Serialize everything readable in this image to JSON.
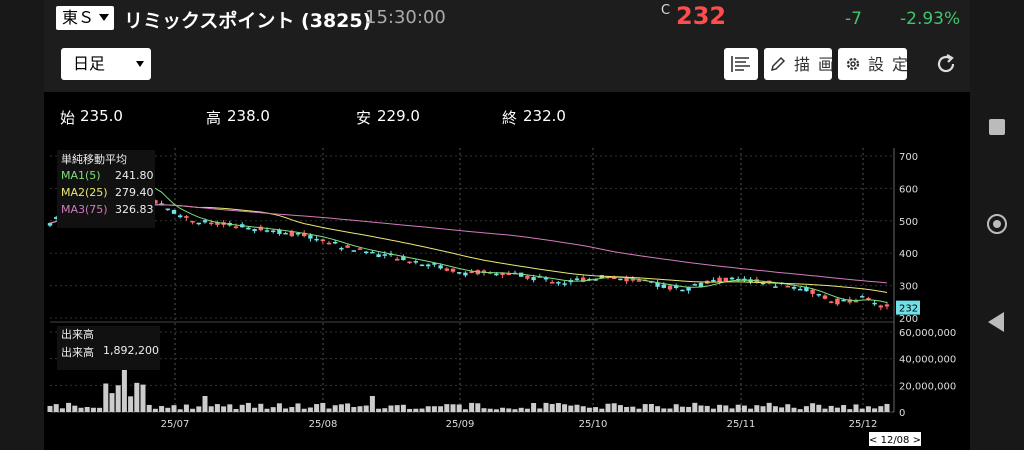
{
  "header": {
    "exchange": "東Ｓ",
    "stock_name": "リミックスポイント (3825)",
    "time": "15:30:00",
    "close_mark": "C",
    "price": "232",
    "change": "-7",
    "change_pct": "-2.93%",
    "colors": {
      "price": "#ff4d4d",
      "change": "#3ec76b"
    }
  },
  "toolbar": {
    "period": "日足",
    "draw_label": "描画",
    "settings_label": "設定"
  },
  "ohlc": {
    "open_label": "始",
    "open": "235.0",
    "high_label": "高",
    "high": "238.0",
    "low_label": "安",
    "low": "229.0",
    "close_label": "終",
    "close": "232.0"
  },
  "ma_legend": {
    "title": "単純移動平均",
    "ma1_label": "MA1(5)",
    "ma1_value": "241.80",
    "ma2_label": "MA2(25)",
    "ma2_value": "279.40",
    "ma3_label": "MA3(75)",
    "ma3_value": "326.83",
    "colors": {
      "ma1": "#7ddf7d",
      "ma2": "#e8e870",
      "ma3": "#d27bbf"
    }
  },
  "volume_legend": {
    "title": "出来高",
    "label": "出来高",
    "value": "1,892,200"
  },
  "chart_data": {
    "type": "candlestick",
    "y_ticks": [
      "700",
      "600",
      "500",
      "400",
      "300",
      "200"
    ],
    "volume_ticks": [
      "60,000,000",
      "40,000,000",
      "20,000,000",
      "0"
    ],
    "x_ticks": [
      "25/07",
      "25/08",
      "25/09",
      "25/10",
      "25/11",
      "25/12"
    ],
    "last_price_label": "232",
    "date_marker": "< 12/08 >",
    "colors": {
      "up": "#ff6b6b",
      "down": "#6fe0e8"
    },
    "ylim": [
      200,
      700
    ],
    "volume_ylim": [
      0,
      60000000
    ]
  }
}
